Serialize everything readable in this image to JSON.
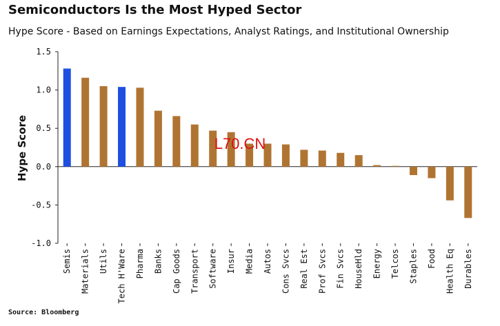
{
  "title": "Semiconductors Is the Most Hyped Sector",
  "subtitle": "Hype Score - Based on Earnings Expectations, Analyst Ratings, and Institutional Ownership",
  "source": "Source: Bloomberg",
  "watermark": "L70.CN",
  "colors": {
    "highlight": "#1f4fe0",
    "default": "#b07432"
  },
  "chart_data": {
    "type": "bar",
    "title": "Semiconductors Is the Most Hyped Sector",
    "subtitle": "Hype Score - Based on Earnings Expectations, Analyst Ratings, and Institutional Ownership",
    "xlabel": "",
    "ylabel": "Hype Score",
    "ylim": [
      -1.0,
      1.5
    ],
    "yticks": [
      "1.5",
      "1.0",
      "0.5",
      "0.0",
      "-0.5",
      "-1.0"
    ],
    "ytick_values": [
      1.5,
      1.0,
      0.5,
      0.0,
      -0.5,
      -1.0
    ],
    "grid": false,
    "categories": [
      "Semis",
      "Materials",
      "Utils",
      "Tech H'Ware",
      "Pharma",
      "Banks",
      "Cap Goods",
      "Transport",
      "Software",
      "Insur",
      "Media",
      "Autos",
      "Cons Svcs",
      "Real Est",
      "Prof Svcs",
      "Fin Svcs",
      "HouseHld",
      "Energy",
      "Telcos",
      "Staples",
      "Food",
      "Health Eq",
      "Durables"
    ],
    "values": [
      1.28,
      1.16,
      1.05,
      1.04,
      1.03,
      0.73,
      0.66,
      0.55,
      0.47,
      0.45,
      0.3,
      0.3,
      0.29,
      0.22,
      0.21,
      0.18,
      0.15,
      0.02,
      0.01,
      -0.11,
      -0.15,
      -0.44,
      -0.67
    ],
    "highlighted": [
      "Semis",
      "Tech H'Ware"
    ]
  }
}
